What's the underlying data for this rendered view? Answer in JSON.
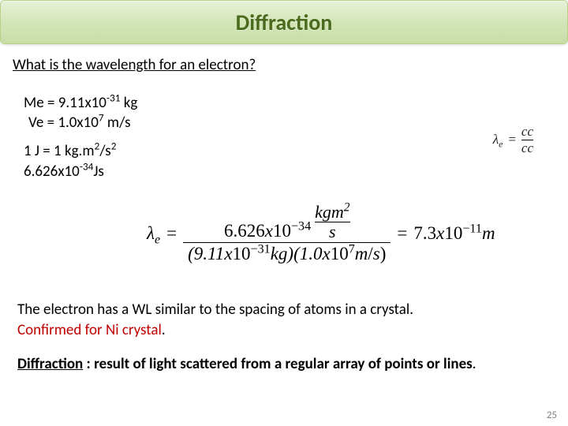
{
  "title": "Diffraction",
  "question": "What is the wavelength for an electron?",
  "givens": {
    "me_label": "Me = 9.11x10",
    "me_exp": "-31",
    "me_unit": " kg",
    "ve_label": "Ve = 1.0x10",
    "ve_exp": "7",
    "ve_unit": " m/s"
  },
  "units": {
    "joule_a": "1 J = 1 kg.m",
    "joule_exp1": "2",
    "joule_b": "/s",
    "joule_exp2": "2",
    "planck_a": "6.626x10",
    "planck_exp": "-34",
    "planck_b": "Js"
  },
  "side_eq": {
    "lhs": "λ",
    "sub": "e",
    "eq": "=",
    "num": "cc",
    "den": "cc"
  },
  "main_eq": {
    "lhs": "λ",
    "sub": "e",
    "eq1": "=",
    "num_a": "6.626",
    "num_b": "x",
    "num_c": "10",
    "num_exp": "−34",
    "unit_num": "kgm",
    "unit_num_exp": "2",
    "unit_den": "s",
    "den_a": "(9.11",
    "den_b": "x",
    "den_c": "10",
    "den_exp1": "−31",
    "den_d": "kg",
    "den_e": ")(1.0",
    "den_f": "x",
    "den_g": "10",
    "den_exp2": "7",
    "den_h": "m",
    "den_i": "/",
    "den_j": "s",
    "den_k": ")",
    "eq2": "=",
    "res_a": "7.3",
    "res_b": "x",
    "res_c": "10",
    "res_exp": "−11",
    "res_unit": "m"
  },
  "bottom": {
    "line1": "The electron has a WL similar to the spacing of atoms in a crystal.",
    "line2": "Confirmed for Ni crystal",
    "line2_end": ".",
    "def_label": "Diffraction",
    "def_rest": " : result of light scattered from a regular array of points or lines",
    "def_end": "."
  },
  "page_number": "25",
  "colors": {
    "title_text": "#4a6b1e",
    "red": "#c00000",
    "page_num": "#7f7f7f",
    "header_top": "#e8f1d9",
    "header_bottom": "#c8dda6"
  }
}
